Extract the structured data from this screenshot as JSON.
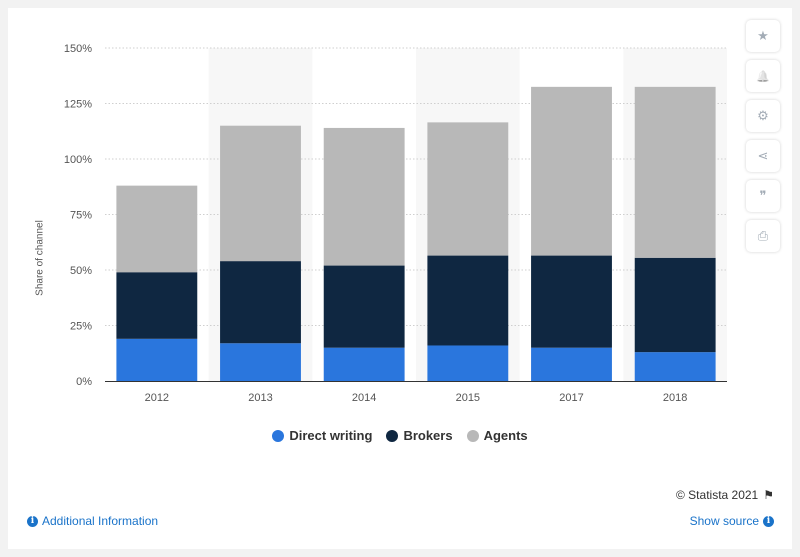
{
  "chart_data": {
    "type": "bar",
    "stacked": true,
    "categories": [
      "2012",
      "2013",
      "2014",
      "2015",
      "2017",
      "2018"
    ],
    "series": [
      {
        "name": "Direct writing",
        "color": "#2a76dd",
        "values": [
          19,
          17,
          15,
          16,
          15,
          13
        ]
      },
      {
        "name": "Brokers",
        "color": "#0f2741",
        "values": [
          30,
          37,
          37,
          40.5,
          41.5,
          42.5
        ]
      },
      {
        "name": "Agents",
        "color": "#b8b8b8",
        "values": [
          39,
          61,
          62,
          60,
          76,
          77
        ]
      }
    ],
    "yticks": [
      "0%",
      "25%",
      "50%",
      "75%",
      "100%",
      "125%",
      "150%"
    ],
    "ylim": [
      0,
      150
    ],
    "ylabel": "Share of channel",
    "grid": true,
    "legend_position": "bottom"
  },
  "toolbar": {
    "buttons": [
      {
        "name": "star-icon",
        "glyph": "★"
      },
      {
        "name": "bell-icon",
        "glyph": "🔔"
      },
      {
        "name": "gear-icon",
        "glyph": "⚙"
      },
      {
        "name": "share-icon",
        "glyph": "⋖"
      },
      {
        "name": "quote-icon",
        "glyph": "❞"
      },
      {
        "name": "print-icon",
        "glyph": "⎙"
      }
    ]
  },
  "footer": {
    "credit": "© Statista 2021",
    "additional_info": "Additional Information",
    "show_source": "Show source"
  }
}
